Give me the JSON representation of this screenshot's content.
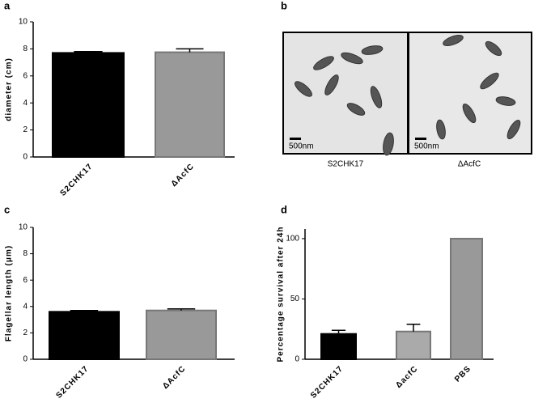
{
  "chart_data": [
    {
      "type": "bar",
      "label": "a",
      "ylabel": "diameter (cm)",
      "categories": [
        "S2CHK17",
        "ΔAcfC"
      ],
      "values": [
        7.7,
        7.75
      ],
      "errors": [
        0.1,
        0.25
      ],
      "colors": [
        "#000000",
        "#999999"
      ],
      "ylim": [
        0,
        10
      ],
      "yticks": [
        0,
        2,
        4,
        6,
        8,
        10
      ]
    },
    {
      "type": "bar",
      "label": "c",
      "ylabel": "Flagellar length (μm)",
      "categories": [
        "S2CHK17",
        "ΔAcfC"
      ],
      "values": [
        3.6,
        3.7
      ],
      "errors": [
        0.1,
        0.12
      ],
      "colors": [
        "#000000",
        "#999999"
      ],
      "ylim": [
        0,
        10
      ],
      "yticks": [
        0,
        2,
        4,
        6,
        8,
        10
      ]
    },
    {
      "type": "bar",
      "label": "d",
      "ylabel": "Percentage survival after 24h",
      "categories": [
        "S2CHK17",
        "ΔacfC",
        "PBS"
      ],
      "values": [
        21,
        23,
        100
      ],
      "errors": [
        3,
        6,
        null
      ],
      "colors": [
        "#000000",
        "#aaaaaa",
        "#999999"
      ],
      "ylim": [
        0,
        108
      ],
      "yticks": [
        0,
        50,
        100
      ]
    }
  ],
  "image_panel": {
    "label": "b",
    "scale_bars": [
      "500nm",
      "500nm"
    ],
    "captions": [
      "S2CHK17",
      "ΔAcfC"
    ]
  }
}
